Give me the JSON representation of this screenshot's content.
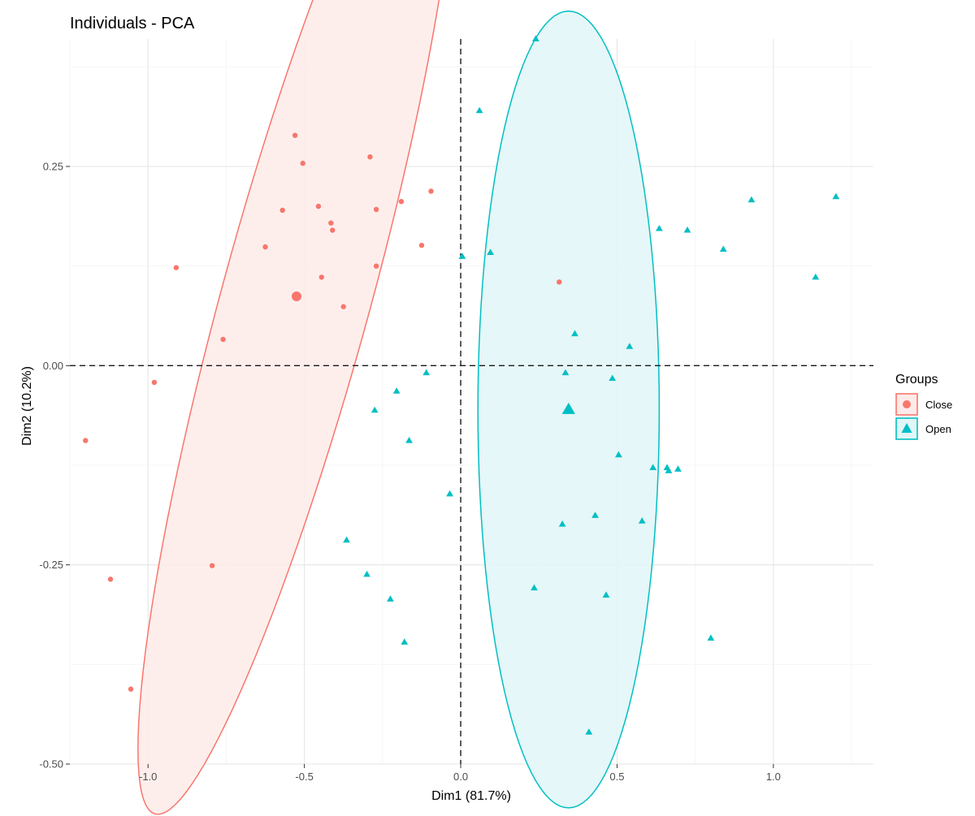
{
  "chart_data": {
    "type": "scatter",
    "title": "Individuals - PCA",
    "xlabel": "Dim1 (81.7%)",
    "ylabel": "Dim2 (10.2%)",
    "xlim": [
      -1.25,
      1.32
    ],
    "ylim": [
      -0.5,
      0.41
    ],
    "x_ticks": [
      -1.0,
      -0.5,
      0.0,
      0.5,
      1.0
    ],
    "x_tick_labels": [
      "-1.0",
      "-0.5",
      "0.0",
      "0.5",
      "1.0"
    ],
    "y_ticks": [
      -0.5,
      -0.25,
      0.0,
      0.25
    ],
    "y_tick_labels": [
      "-0.50",
      "-0.25",
      "0.00",
      "0.25"
    ],
    "grid": true,
    "reference_lines": {
      "x": 0,
      "y": 0,
      "style": "dashed"
    },
    "legend": {
      "title": "Groups",
      "position": "right",
      "entries": [
        "Close",
        "Open"
      ]
    },
    "series": [
      {
        "name": "Close",
        "marker": "circle",
        "color": "#F8766D",
        "points": [
          [
            -0.53,
            0.289
          ],
          [
            -0.505,
            0.254
          ],
          [
            -0.29,
            0.262
          ],
          [
            -0.095,
            0.219
          ],
          [
            -0.57,
            0.195
          ],
          [
            -0.455,
            0.2
          ],
          [
            -0.27,
            0.196
          ],
          [
            -0.19,
            0.206
          ],
          [
            -0.415,
            0.179
          ],
          [
            -0.41,
            0.17
          ],
          [
            -0.625,
            0.149
          ],
          [
            -0.125,
            0.151
          ],
          [
            -0.91,
            0.123
          ],
          [
            -0.27,
            0.125
          ],
          [
            -0.445,
            0.111
          ],
          [
            -0.375,
            0.074
          ],
          [
            -0.76,
            0.033
          ],
          [
            -0.98,
            -0.021
          ],
          [
            -1.2,
            -0.094
          ],
          [
            -0.795,
            -0.251
          ],
          [
            -1.12,
            -0.268
          ],
          [
            -1.055,
            -0.406
          ],
          [
            0.315,
            0.105
          ]
        ],
        "centroid": [
          -0.525,
          0.087
        ],
        "ellipse": {
          "center": [
            -0.525,
            0.087
          ],
          "semi_axes": [
            0.8,
            0.2
          ],
          "angle_deg": 53
        }
      },
      {
        "name": "Open",
        "marker": "triangle",
        "color": "#00BFC4",
        "points": [
          [
            0.24,
            0.41
          ],
          [
            0.06,
            0.32
          ],
          [
            0.005,
            0.137
          ],
          [
            0.095,
            0.142
          ],
          [
            0.635,
            0.172
          ],
          [
            0.725,
            0.17
          ],
          [
            0.84,
            0.146
          ],
          [
            0.93,
            0.208
          ],
          [
            1.2,
            0.212
          ],
          [
            1.135,
            0.111
          ],
          [
            0.365,
            0.04
          ],
          [
            0.54,
            0.024
          ],
          [
            0.335,
            -0.009
          ],
          [
            0.485,
            -0.016
          ],
          [
            -0.11,
            -0.009
          ],
          [
            -0.205,
            -0.032
          ],
          [
            -0.275,
            -0.056
          ],
          [
            -0.165,
            -0.094
          ],
          [
            0.505,
            -0.112
          ],
          [
            0.615,
            -0.128
          ],
          [
            0.66,
            -0.128
          ],
          [
            0.665,
            -0.132
          ],
          [
            0.695,
            -0.13
          ],
          [
            -0.035,
            -0.161
          ],
          [
            0.325,
            -0.199
          ],
          [
            0.43,
            -0.188
          ],
          [
            0.58,
            -0.195
          ],
          [
            -0.365,
            -0.219
          ],
          [
            -0.3,
            -0.262
          ],
          [
            -0.225,
            -0.293
          ],
          [
            0.235,
            -0.279
          ],
          [
            0.465,
            -0.288
          ],
          [
            -0.18,
            -0.347
          ],
          [
            0.8,
            -0.342
          ],
          [
            0.41,
            -0.46
          ]
        ],
        "centroid": [
          0.345,
          -0.055
        ],
        "ellipse": {
          "center": [
            0.345,
            -0.055
          ],
          "semi_axes": [
            0.5,
            0.29
          ],
          "angle_deg": 90
        }
      }
    ]
  }
}
